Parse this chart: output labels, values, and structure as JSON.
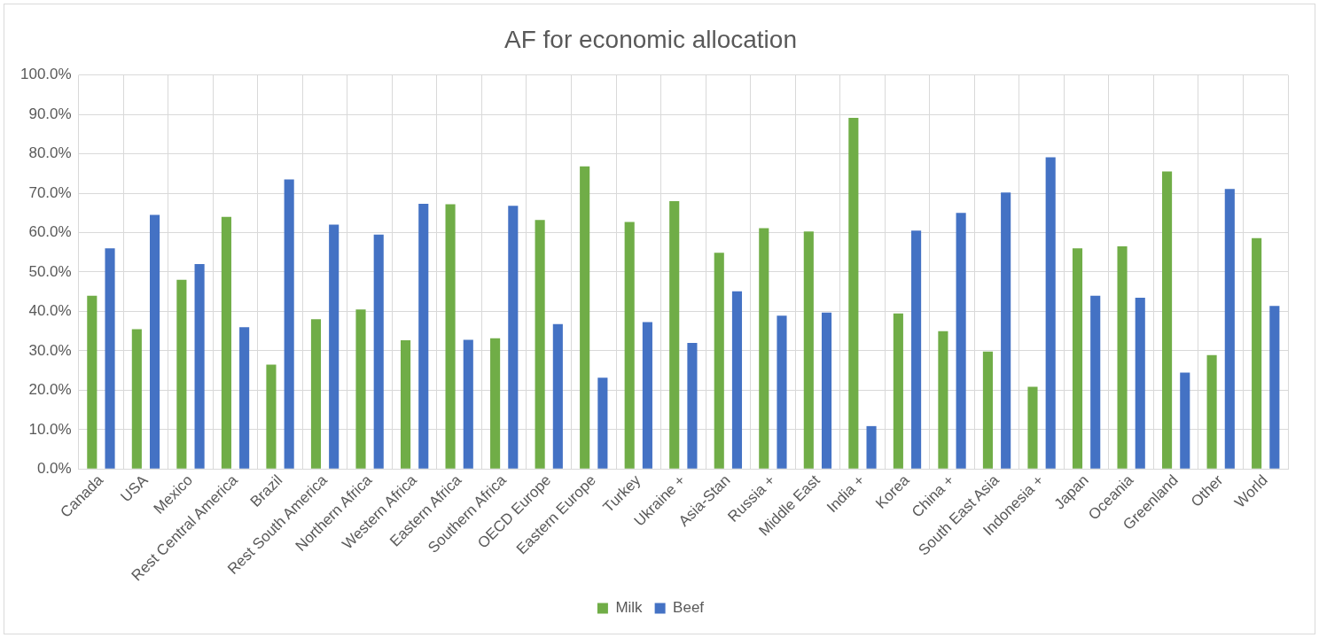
{
  "chart_data": {
    "type": "bar",
    "title": "AF for economic allocation",
    "categories": [
      "Canada",
      "USA",
      "Mexico",
      "Rest Central America",
      "Brazil",
      "Rest South America",
      "Northern Africa",
      "Western Africa",
      "Eastern Africa",
      "Southern Africa",
      "OECD Europe",
      "Eastern Europe",
      "Turkey",
      "Ukraine +",
      "Asia-Stan",
      "Russia +",
      "Middle East",
      "India +",
      "Korea",
      "China +",
      "South East Asia",
      "Indonesia +",
      "Japan",
      "Oceania",
      "Greenland",
      "Other",
      "World"
    ],
    "series": [
      {
        "name": "Milk",
        "color": "#70ad47",
        "values": [
          44,
          35.5,
          48,
          64,
          26.5,
          38,
          40.5,
          32.7,
          67.2,
          33.2,
          63.2,
          76.8,
          62.7,
          68,
          54.9,
          61.1,
          60.3,
          89.1,
          39.5,
          35,
          29.8,
          20.9,
          56,
          56.5,
          75.5,
          28.9,
          58.6
        ]
      },
      {
        "name": "Beef",
        "color": "#4472c4",
        "values": [
          56,
          64.5,
          52,
          36,
          73.5,
          62,
          59.5,
          67.3,
          32.8,
          66.8,
          36.8,
          23.2,
          37.3,
          32,
          45.1,
          38.9,
          39.7,
          10.9,
          60.5,
          65,
          70.2,
          79.1,
          44,
          43.5,
          24.5,
          71.1,
          41.4
        ]
      }
    ],
    "ylim": [
      0,
      100
    ],
    "yticks": [
      {
        "value": 0,
        "label": "0.0%"
      },
      {
        "value": 10,
        "label": "10.0%"
      },
      {
        "value": 20,
        "label": "20.0%"
      },
      {
        "value": 30,
        "label": "30.0%"
      },
      {
        "value": 40,
        "label": "40.0%"
      },
      {
        "value": 50,
        "label": "50.0%"
      },
      {
        "value": 60,
        "label": "60.0%"
      },
      {
        "value": 70,
        "label": "70.0%"
      },
      {
        "value": 80,
        "label": "80.0%"
      },
      {
        "value": 90,
        "label": "90.0%"
      },
      {
        "value": 100,
        "label": "100.0%"
      }
    ],
    "grid": true,
    "legend": "bottom"
  }
}
